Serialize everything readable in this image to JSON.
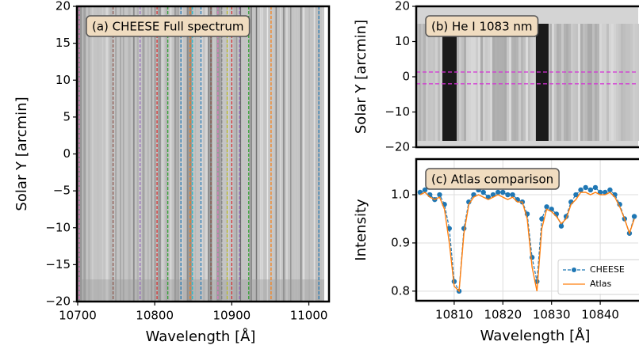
{
  "chart_data": [
    {
      "type": "image",
      "title": "(a) CHEESE Full spectrum",
      "xlabel": "Wavelength [Å]",
      "ylabel": "Solar Y [arcmin]",
      "xlim": [
        10699,
        11020
      ],
      "ylim": [
        -20,
        20
      ],
      "xticks": [
        10700,
        10800,
        10900,
        11000
      ],
      "yticks": [
        {
          "value": -20,
          "label": "−20"
        },
        {
          "value": -15,
          "label": "−15"
        },
        {
          "value": -10,
          "label": "−10"
        },
        {
          "value": -5,
          "label": "−5"
        },
        0,
        5,
        10,
        15,
        20
      ],
      "vlines": [
        {
          "x": 10702,
          "color": "#e377c2"
        },
        {
          "x": 10746,
          "color": "#8c564b"
        },
        {
          "x": 10781,
          "color": "#9467bd"
        },
        {
          "x": 10803,
          "color": "#d62728"
        },
        {
          "x": 10817,
          "color": "#2ca02c"
        },
        {
          "x": 10834,
          "color": "#1f77b4"
        },
        {
          "x": 10846,
          "color": "#ff7f0e"
        },
        {
          "x": 10849,
          "color": "#17becf"
        },
        {
          "x": 10860,
          "color": "#1f77b4"
        },
        {
          "x": 10873,
          "color": "#8c564b"
        },
        {
          "x": 10882,
          "color": "#e377c2"
        },
        {
          "x": 10887,
          "color": "#7f7f7f"
        },
        {
          "x": 10894,
          "color": "#bcbd22"
        },
        {
          "x": 10900,
          "color": "#d62728"
        },
        {
          "x": 10910,
          "color": "#9467bd"
        },
        {
          "x": 10922,
          "color": "#2ca02c"
        },
        {
          "x": 10951,
          "color": "#ff7f0e"
        },
        {
          "x": 11013,
          "color": "#1f77b4"
        }
      ]
    },
    {
      "type": "image",
      "title": "(b) He I 1083 nm",
      "ylabel": "Solar Y [arcmin]",
      "ylim": [
        -20,
        20
      ],
      "yticks": [
        {
          "value": -20,
          "label": "−20"
        },
        {
          "value": -10,
          "label": "−10"
        },
        0,
        10,
        20
      ],
      "hlines": [
        {
          "y": 1.35,
          "color": "#d62fd6"
        },
        {
          "y": -2,
          "color": "#d62fd6"
        }
      ]
    },
    {
      "type": "line",
      "title": "(c) Atlas comparison",
      "xlabel": "Wavelength [Å]",
      "ylabel": "Intensity",
      "xlim": [
        10802.2,
        10847.8
      ],
      "ylim": [
        0.78,
        1.074
      ],
      "xticks": [
        10810,
        10820,
        10830,
        10840
      ],
      "yticks": [
        0.8,
        0.9,
        {
          "value": 1,
          "label": "1.0"
        }
      ],
      "grid": true,
      "legend": "lower right",
      "x": [
        10803,
        10804,
        10805,
        10806,
        10807,
        10808,
        10809,
        10810,
        10811,
        10812,
        10813,
        10814,
        10815,
        10816,
        10817,
        10818,
        10819,
        10820,
        10821,
        10822,
        10823,
        10824,
        10825,
        10826,
        10827,
        10828,
        10829,
        10830,
        10831,
        10832,
        10833,
        10834,
        10835,
        10836,
        10837,
        10838,
        10839,
        10840,
        10841,
        10842,
        10843,
        10844,
        10845,
        10846,
        10847
      ],
      "series": [
        {
          "name": "CHEESE",
          "color": "#1f77b4",
          "values": [
            1.005,
            1.01,
            1.0,
            0.99,
            1.0,
            0.98,
            0.93,
            0.82,
            0.8,
            0.93,
            0.985,
            1.0,
            1.01,
            1.005,
            0.995,
            1.0,
            1.005,
            1.005,
            1.0,
            1.0,
            0.99,
            0.985,
            0.96,
            0.87,
            0.82,
            0.95,
            0.975,
            0.97,
            0.96,
            0.935,
            0.955,
            0.985,
            1.0,
            1.01,
            1.015,
            1.01,
            1.015,
            1.005,
            1.005,
            1.01,
            1.0,
            0.98,
            0.95,
            0.92,
            0.955
          ]
        },
        {
          "name": "Atlas",
          "color": "#ff7f0e",
          "values": [
            1.0,
            1.005,
            0.995,
            0.99,
            0.995,
            0.97,
            0.9,
            0.81,
            0.8,
            0.92,
            0.98,
            0.995,
            1.0,
            0.995,
            0.99,
            0.995,
            1.0,
            0.995,
            0.99,
            0.995,
            0.985,
            0.985,
            0.95,
            0.85,
            0.8,
            0.93,
            0.97,
            0.965,
            0.955,
            0.94,
            0.95,
            0.98,
            0.99,
            1.005,
            1.005,
            1.0,
            1.005,
            1.0,
            1.0,
            1.005,
            0.995,
            0.975,
            0.95,
            0.92,
            0.95
          ]
        }
      ]
    }
  ]
}
